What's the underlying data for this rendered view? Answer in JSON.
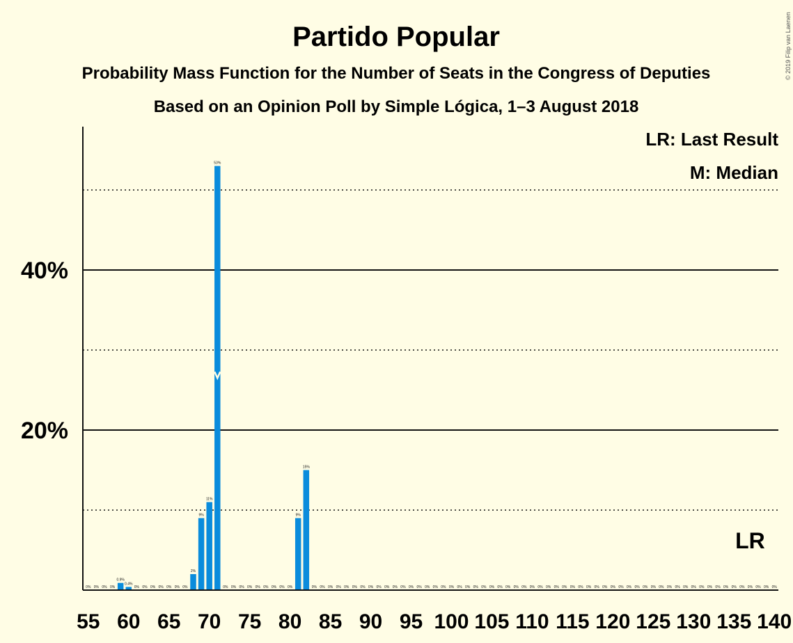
{
  "title": "Partido Popular",
  "subtitle1": "Probability Mass Function for the Number of Seats in the Congress of Deputies",
  "subtitle2": "Based on an Opinion Poll by Simple Lógica, 1–3 August 2018",
  "copyright": "© 2019 Filip van Laenen",
  "legend": {
    "lr": "LR: Last Result",
    "median": "M: Median"
  },
  "markers": {
    "lr_label": "LR",
    "lr_seat": 137,
    "median_seat": 71,
    "median_symbol": "M"
  },
  "colors": {
    "background": "#FFFDE5",
    "bar": "#0A8CDC",
    "axis": "#111111"
  },
  "chart_data": {
    "type": "bar",
    "xlabel": "",
    "ylabel": "",
    "ylim": [
      0,
      57
    ],
    "yticks_major": [
      20,
      40
    ],
    "ytick_labels": [
      "20%",
      "40%"
    ],
    "yticks_minor": [
      10,
      30,
      50
    ],
    "xticks": [
      55,
      60,
      65,
      70,
      75,
      80,
      85,
      90,
      95,
      100,
      105,
      110,
      115,
      120,
      125,
      130,
      135,
      140
    ],
    "x": [
      55,
      56,
      57,
      58,
      59,
      60,
      61,
      62,
      63,
      64,
      65,
      66,
      67,
      68,
      69,
      70,
      71,
      72,
      73,
      74,
      75,
      76,
      77,
      78,
      79,
      80,
      81,
      82,
      83,
      84,
      85,
      86,
      87,
      88,
      89,
      90,
      91,
      92,
      93,
      94,
      95,
      96,
      97,
      98,
      99,
      100,
      101,
      102,
      103,
      104,
      105,
      106,
      107,
      108,
      109,
      110,
      111,
      112,
      113,
      114,
      115,
      116,
      117,
      118,
      119,
      120,
      121,
      122,
      123,
      124,
      125,
      126,
      127,
      128,
      129,
      130,
      131,
      132,
      133,
      134,
      135,
      136,
      137,
      138,
      139,
      140
    ],
    "values": [
      0,
      0,
      0,
      0,
      0.9,
      0.4,
      0,
      0,
      0,
      0,
      0,
      0,
      0,
      2,
      9,
      11,
      53,
      0,
      0,
      0,
      0,
      0,
      0,
      0,
      0,
      0,
      9,
      15,
      0,
      0,
      0,
      0,
      0,
      0,
      0,
      0,
      0,
      0,
      0,
      0,
      0,
      0,
      0,
      0,
      0,
      0,
      0,
      0,
      0,
      0,
      0,
      0,
      0,
      0,
      0,
      0,
      0,
      0,
      0,
      0,
      0,
      0,
      0,
      0,
      0,
      0,
      0,
      0,
      0,
      0,
      0,
      0,
      0,
      0,
      0,
      0,
      0,
      0,
      0,
      0,
      0,
      0,
      0,
      0,
      0,
      0
    ],
    "labels": [
      "0%",
      "0%",
      "0%",
      "0%",
      "0.9%",
      "0.4%",
      "0%",
      "0%",
      "0%",
      "0%",
      "0%",
      "0%",
      "0%",
      "2%",
      "9%",
      "11%",
      "53%",
      "0%",
      "0%",
      "0%",
      "0%",
      "0%",
      "0%",
      "0%",
      "0%",
      "0%",
      "9%",
      "15%",
      "0%",
      "0%",
      "0%",
      "0%",
      "0%",
      "0%",
      "0%",
      "0%",
      "0%",
      "0%",
      "0%",
      "0%",
      "0%",
      "0%",
      "0%",
      "0%",
      "0%",
      "0%",
      "0%",
      "0%",
      "0%",
      "0%",
      "0%",
      "0%",
      "0%",
      "0%",
      "0%",
      "0%",
      "0%",
      "0%",
      "0%",
      "0%",
      "0%",
      "0%",
      "0%",
      "0%",
      "0%",
      "0%",
      "0%",
      "0%",
      "0%",
      "0%",
      "0%",
      "0%",
      "0%",
      "0%",
      "0%",
      "0%",
      "0%",
      "0%",
      "0%",
      "0%",
      "0%",
      "0%",
      "0%",
      "0%",
      "0%",
      "0%"
    ]
  }
}
